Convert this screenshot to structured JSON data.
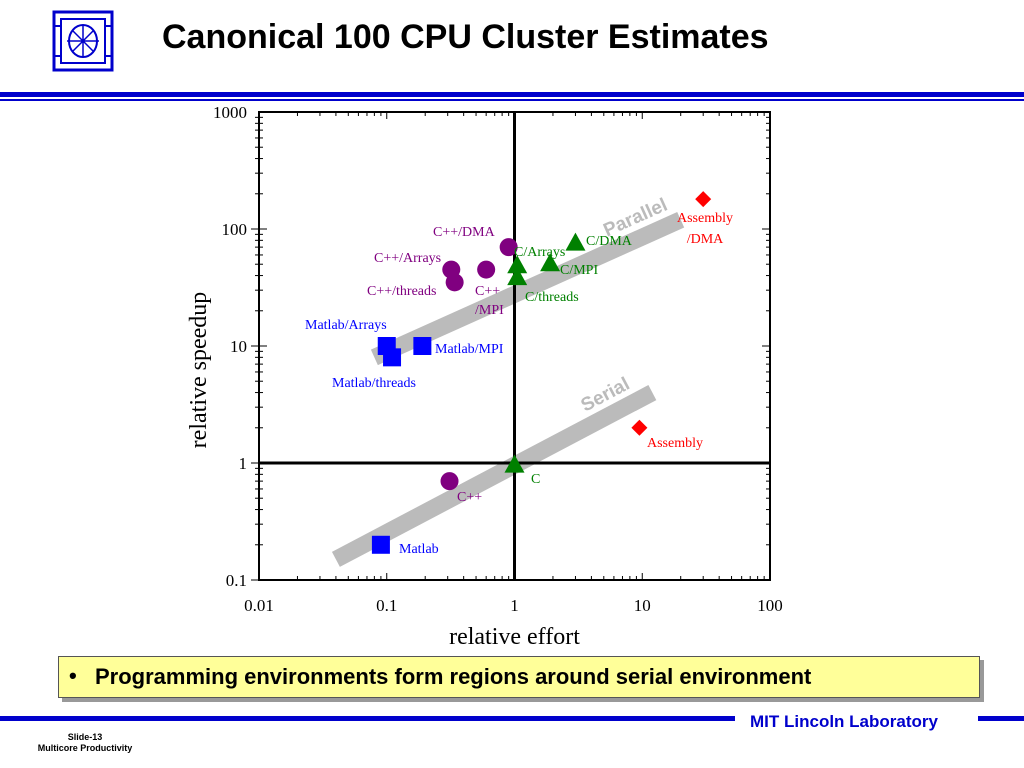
{
  "slide": {
    "title": "Canonical 100 CPU Cluster Estimates",
    "bullet": "Programming environments form regions around serial environment",
    "footer_org": "MIT Lincoln Laboratory",
    "slide_number": "Slide-13",
    "deck_name": "Multicore Productivity"
  },
  "colors": {
    "accent": "#0000cc",
    "matlab": "#0000ff",
    "cpp": "#800080",
    "c": "#008000",
    "assembly": "#ff0000",
    "band": "#bbbbbb",
    "bullet_bg": "#ffff99"
  },
  "icons": [
    "lincoln-lab-logo-icon"
  ],
  "chart_data": {
    "type": "scatter",
    "xscale": "log",
    "yscale": "log",
    "xlabel": "relative effort",
    "ylabel": "relative speedup",
    "xlim": [
      0.01,
      100
    ],
    "ylim": [
      0.1,
      1000
    ],
    "xticks": [
      "0.01",
      "0.1",
      "1",
      "10",
      "100"
    ],
    "yticks": [
      "0.1",
      "1",
      "10",
      "100",
      "1000"
    ],
    "reference_lines": {
      "x": 1,
      "y": 1
    },
    "bands": [
      {
        "label": "Parallel",
        "from": [
          0.08,
          8
        ],
        "to": [
          20,
          120
        ]
      },
      {
        "label": "Serial",
        "from": [
          0.04,
          0.15
        ],
        "to": [
          12,
          4
        ]
      }
    ],
    "series": [
      {
        "name": "Matlab",
        "marker": "square",
        "color": "#0000ff",
        "points": [
          {
            "label": "Matlab",
            "x": 0.09,
            "y": 0.2
          },
          {
            "label": "Matlab/Arrays",
            "x": 0.1,
            "y": 10
          },
          {
            "label": "Matlab/threads",
            "x": 0.11,
            "y": 8
          },
          {
            "label": "Matlab/MPI",
            "x": 0.19,
            "y": 10
          }
        ]
      },
      {
        "name": "C++",
        "marker": "circle",
        "color": "#800080",
        "points": [
          {
            "label": "C++",
            "x": 0.31,
            "y": 0.7
          },
          {
            "label": "C++/Arrays",
            "x": 0.32,
            "y": 45
          },
          {
            "label": "C++/threads",
            "x": 0.34,
            "y": 35
          },
          {
            "label": "C++/MPI",
            "x": 0.6,
            "y": 45
          },
          {
            "label": "C++/DMA",
            "x": 0.9,
            "y": 70
          }
        ]
      },
      {
        "name": "C",
        "marker": "triangle",
        "color": "#008000",
        "points": [
          {
            "label": "C",
            "x": 1,
            "y": 0.95
          },
          {
            "label": "C/Arrays",
            "x": 1.05,
            "y": 48
          },
          {
            "label": "C/threads",
            "x": 1.05,
            "y": 38
          },
          {
            "label": "C/MPI",
            "x": 1.9,
            "y": 50
          },
          {
            "label": "C/DMA",
            "x": 3,
            "y": 75
          }
        ]
      },
      {
        "name": "Assembly",
        "marker": "diamond",
        "color": "#ff0000",
        "points": [
          {
            "label": "Assembly",
            "x": 9.5,
            "y": 2
          },
          {
            "label": "Assembly/DMA",
            "x": 30,
            "y": 180
          }
        ]
      }
    ],
    "annotations": [
      {
        "text": "Matlab/Arrays"
      },
      {
        "text": "Matlab/threads"
      },
      {
        "text": "Matlab/MPI"
      },
      {
        "text": "Matlab"
      },
      {
        "text": "C++/DMA"
      },
      {
        "text": "C++/Arrays"
      },
      {
        "text": "C++/threads"
      },
      {
        "text": "C++"
      },
      {
        "text": "/MPI"
      },
      {
        "text": "C++"
      },
      {
        "text": "C/Arrays"
      },
      {
        "text": "C/DMA"
      },
      {
        "text": "C/MPI"
      },
      {
        "text": "C/threads"
      },
      {
        "text": "C"
      },
      {
        "text": "Assembly"
      },
      {
        "text": "/DMA"
      },
      {
        "text": "Assembly"
      }
    ]
  }
}
